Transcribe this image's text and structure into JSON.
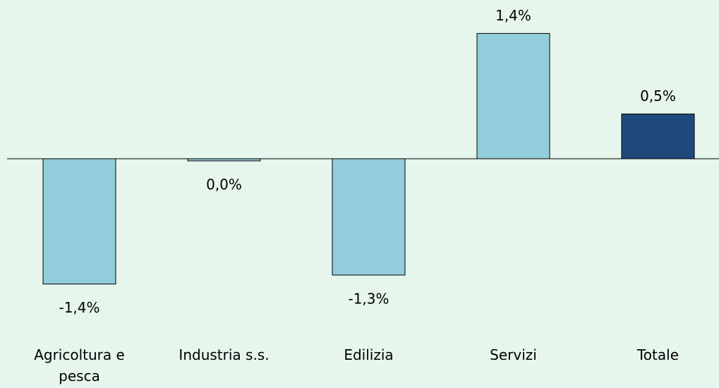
{
  "chart_data": {
    "type": "bar",
    "categories": [
      "Agricoltura e pesca",
      "Industria s.s.",
      "Edilizia",
      "Servizi",
      "Totale"
    ],
    "values": [
      -1.4,
      -0.02,
      -1.3,
      1.4,
      0.5
    ],
    "value_labels": [
      "-1,4%",
      "0,0%",
      "-1,3%",
      "1,4%",
      "0,5%"
    ],
    "colors": [
      "#92cddc",
      "#92cddc",
      "#92cddc",
      "#92cddc",
      "#1f497d"
    ],
    "ylim": [
      -1.75,
      1.75
    ]
  }
}
